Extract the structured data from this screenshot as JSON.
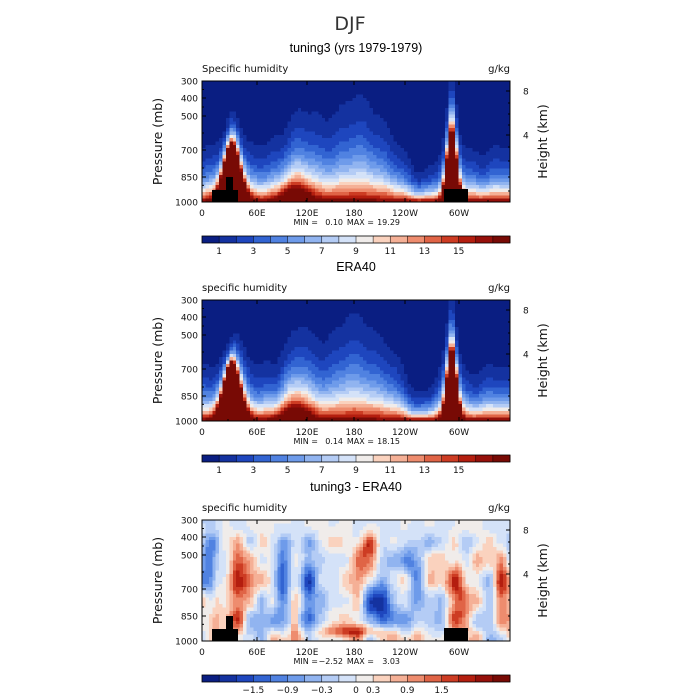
{
  "figure_title": "DJF",
  "chart_data": [
    {
      "type": "heatmap",
      "title": "tuning3 (yrs 1979-1979)",
      "left_label": "Specific humidity",
      "units": "g/kg",
      "ylabel": "Pressure (mb)",
      "ylabel_right": "Height (km)",
      "yticks": [
        "300",
        "400",
        "500",
        "700",
        "850",
        "1000"
      ],
      "yticks_right": [
        "8",
        "4"
      ],
      "xticks": [
        "0",
        "60E",
        "120E",
        "180",
        "120W",
        "60W"
      ],
      "min_label": "MIN =",
      "min": "0.10",
      "max_label": "MAX =",
      "max": "19.29",
      "colorbar_labels": [
        "1",
        "3",
        "5",
        "7",
        "9",
        "11",
        "13",
        "15"
      ],
      "field": "humidity",
      "colors": [
        "#0a1e82",
        "#1432a0",
        "#1e46be",
        "#3264d2",
        "#5082e1",
        "#6e9bea",
        "#91b4f0",
        "#b4ccf5",
        "#d4e2f8",
        "#f0ecea",
        "#fad2be",
        "#f5b096",
        "#ee8c6e",
        "#e06446",
        "#cd3c23",
        "#b41e0f",
        "#96100a",
        "#780a05"
      ]
    },
    {
      "type": "heatmap",
      "title": "ERA40",
      "left_label": "specific humidity",
      "units": "g/kg",
      "ylabel": "Pressure (mb)",
      "ylabel_right": "Height (km)",
      "yticks": [
        "300",
        "400",
        "500",
        "700",
        "850",
        "1000"
      ],
      "yticks_right": [
        "8",
        "4"
      ],
      "xticks": [
        "0",
        "60E",
        "120E",
        "180",
        "120W",
        "60W"
      ],
      "min_label": "MIN =",
      "min": "0.14",
      "max_label": "MAX =",
      "max": "18.15",
      "colorbar_labels": [
        "1",
        "3",
        "5",
        "7",
        "9",
        "11",
        "13",
        "15"
      ],
      "field": "humidity",
      "colors": [
        "#0a1e82",
        "#1432a0",
        "#1e46be",
        "#3264d2",
        "#5082e1",
        "#6e9bea",
        "#91b4f0",
        "#b4ccf5",
        "#d4e2f8",
        "#f0ecea",
        "#fad2be",
        "#f5b096",
        "#ee8c6e",
        "#e06446",
        "#cd3c23",
        "#b41e0f",
        "#96100a",
        "#780a05"
      ]
    },
    {
      "type": "heatmap",
      "title": "tuning3 - ERA40",
      "left_label": "specific humidity",
      "units": "g/kg",
      "ylabel": "Pressure (mb)",
      "ylabel_right": "Height (km)",
      "yticks": [
        "300",
        "400",
        "500",
        "700",
        "850",
        "1000"
      ],
      "yticks_right": [
        "8",
        "4"
      ],
      "xticks": [
        "0",
        "60E",
        "120E",
        "180",
        "120W",
        "60W"
      ],
      "min_label": "MIN =",
      "min": "−2.52",
      "max_label": "MAX =",
      "max": "3.03",
      "colorbar_labels": [
        "−1.5",
        "−0.9",
        "−0.3",
        "0",
        "0.3",
        "0.9",
        "1.5"
      ],
      "field": "difference",
      "colors": [
        "#0a1e82",
        "#1432a0",
        "#1e46be",
        "#3264d2",
        "#5082e1",
        "#6e9bea",
        "#91b4f0",
        "#b4ccf5",
        "#d4e2f8",
        "#f0ecea",
        "#fad2be",
        "#f5b096",
        "#ee8c6e",
        "#e06446",
        "#cd3c23",
        "#b41e0f",
        "#96100a",
        "#780a05"
      ]
    }
  ]
}
